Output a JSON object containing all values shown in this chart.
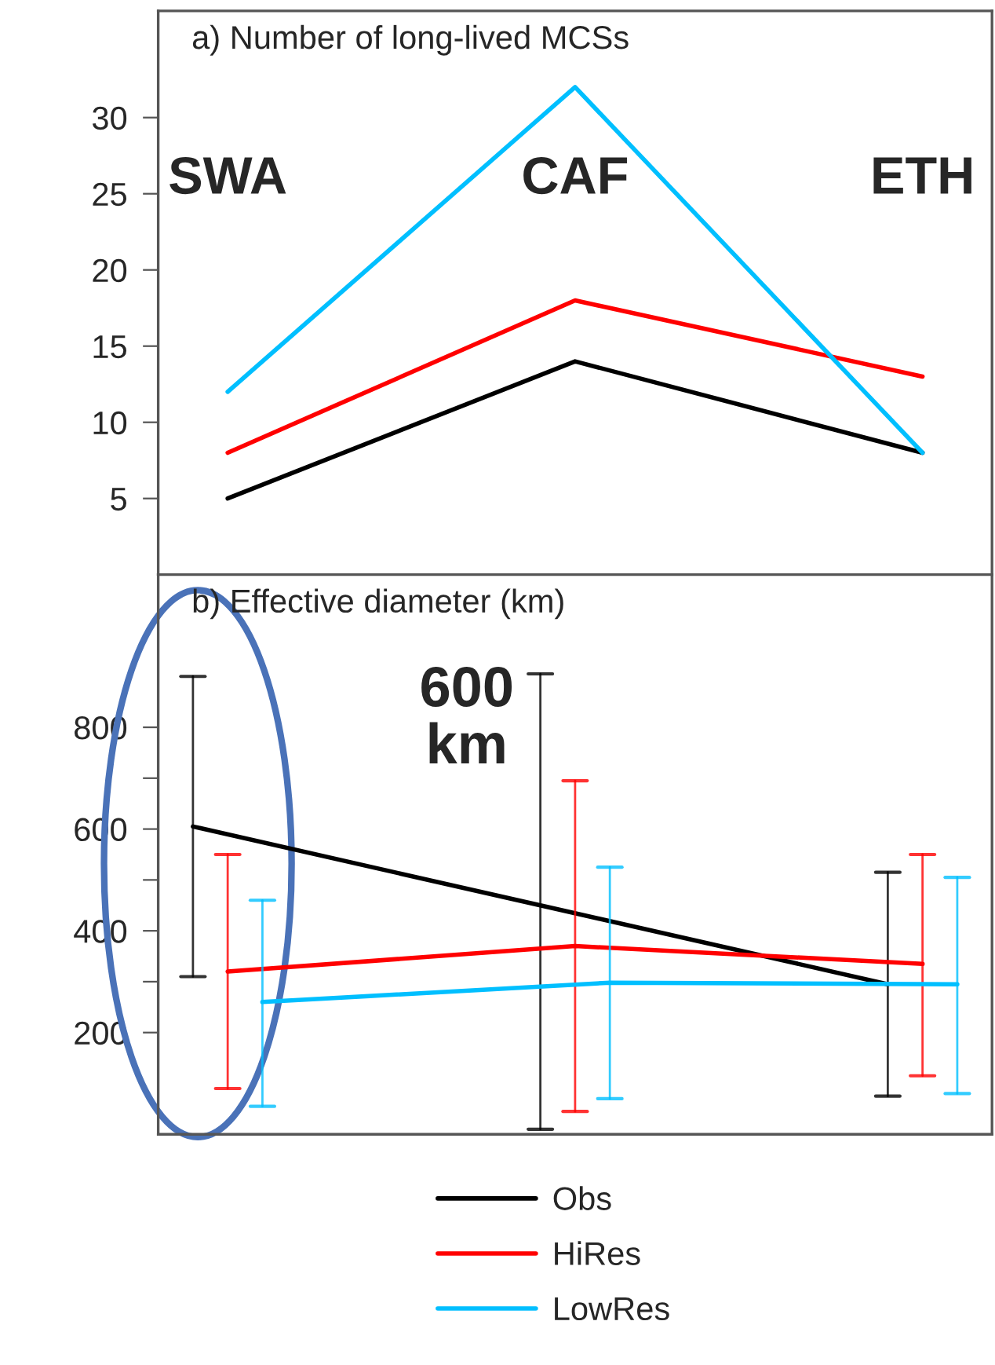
{
  "chart_data": [
    {
      "type": "line",
      "title": "a) Number of long-lived MCSs",
      "annotations": [
        "SWA",
        "CAF",
        "ETH"
      ],
      "categories": [
        null,
        null,
        null
      ],
      "ylim": [
        0,
        37
      ],
      "yticks": [
        5,
        10,
        15,
        20,
        25,
        30
      ],
      "grid": false,
      "series": [
        {
          "color": "#000000",
          "values": [
            5,
            14,
            8
          ]
        },
        {
          "color": "#ff0000",
          "values": [
            8,
            18,
            13
          ]
        },
        {
          "color": "#00bfff",
          "values": [
            12,
            32,
            8
          ]
        }
      ]
    },
    {
      "type": "line",
      "title": "b) Effective diameter (km)",
      "annotations": [
        "600\nkm"
      ],
      "categories": [
        null,
        null,
        null
      ],
      "ylim": [
        0,
        1100
      ],
      "yticks": [
        200,
        {
          "value": 300,
          "label": null
        },
        400,
        {
          "value": 500,
          "label": null
        },
        600,
        {
          "value": 700,
          "label": null
        },
        800
      ],
      "grid": false,
      "legend": "bottom",
      "series": [
        {
          "name": "Obs",
          "color": "#000000",
          "values": [
            605,
            450,
            295
          ],
          "errors": [
            [
              310,
              900
            ],
            [
              10,
              905
            ],
            [
              75,
              515
            ]
          ]
        },
        {
          "name": "HiRes",
          "color": "#ff0000",
          "values": [
            320,
            370,
            335
          ],
          "errors": [
            [
              90,
              550
            ],
            [
              45,
              695
            ],
            [
              115,
              550
            ]
          ]
        },
        {
          "name": "LowRes",
          "color": "#00bfff",
          "values": [
            260,
            298,
            295
          ],
          "errors": [
            [
              55,
              460
            ],
            [
              70,
              525
            ],
            [
              80,
              505
            ]
          ]
        }
      ]
    }
  ]
}
